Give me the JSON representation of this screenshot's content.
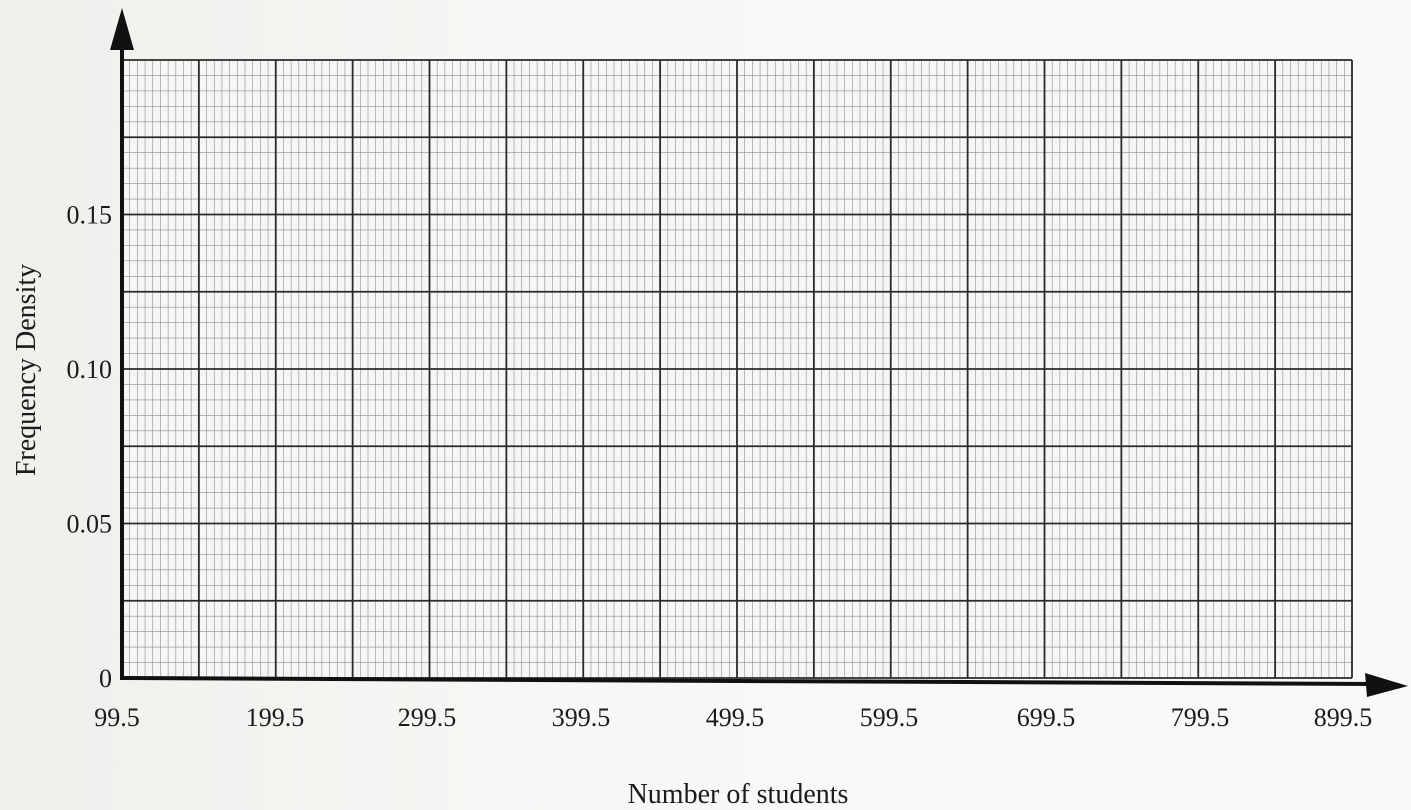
{
  "chart_data": {
    "type": "bar",
    "title": "",
    "xlabel": "Number of students",
    "ylabel": "Frequency Density",
    "x_ticks": [
      "99.5",
      "199.5",
      "299.5",
      "399.5",
      "499.5",
      "599.5",
      "699.5",
      "799.5",
      "899.5"
    ],
    "y_ticks": [
      "0",
      "0.05",
      "0.10",
      "0.15"
    ],
    "xlim": [
      99.5,
      899.5
    ],
    "ylim": [
      0,
      0.2
    ],
    "grid": true,
    "series": [],
    "colors": {
      "paper": "#f6f6f4",
      "major_grid": "#2a2a2a",
      "minor_grid": "#8e8e8e",
      "axis": "#111111"
    }
  }
}
